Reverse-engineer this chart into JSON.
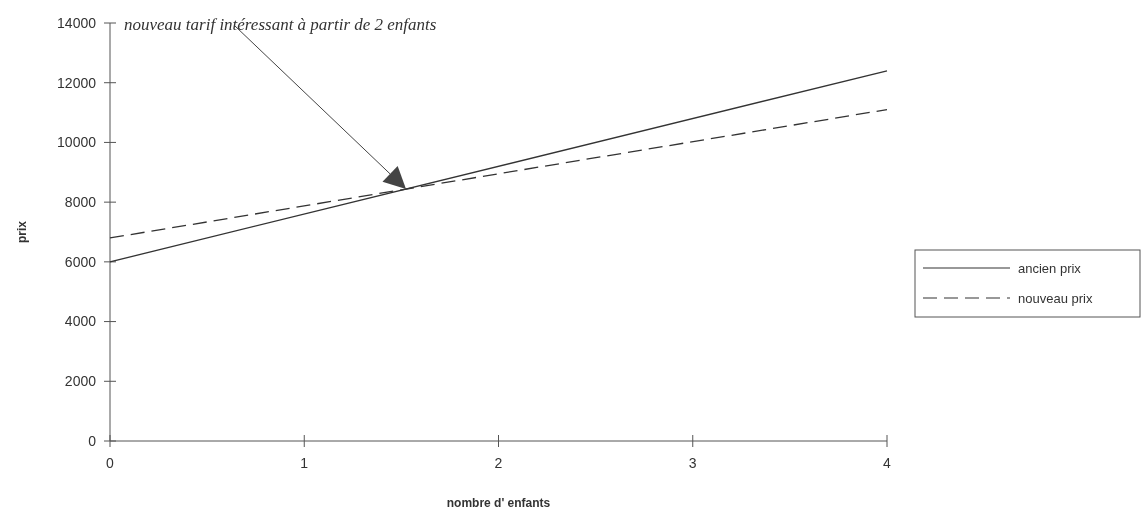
{
  "chart_data": {
    "type": "line",
    "xlabel": "nombre d' enfants",
    "ylabel": "prix",
    "xlim": [
      0,
      4
    ],
    "xticks": [
      0,
      1,
      2,
      3,
      4
    ],
    "ylim": [
      0,
      14000
    ],
    "yticks": [
      0,
      2000,
      4000,
      6000,
      8000,
      10000,
      12000,
      14000
    ],
    "series": [
      {
        "name": "ancien prix",
        "color": "#333333",
        "values": [
          6000,
          12400
        ],
        "line_style": "solid"
      },
      {
        "name": "nouveau prix",
        "color": "#333333",
        "values": [
          6800,
          11100
        ],
        "line_style": "dashed"
      }
    ],
    "x": [
      0,
      4
    ],
    "annotations": [
      "nouveau tarif intéressant à partir de 2 enfants"
    ],
    "legend": "right",
    "grid": false,
    "marker": "none"
  }
}
